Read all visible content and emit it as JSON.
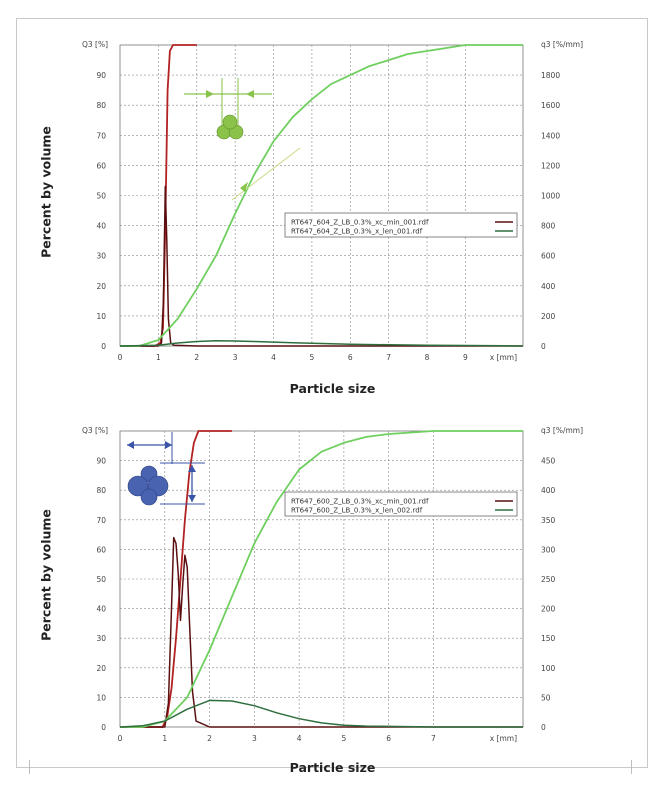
{
  "chart_data": [
    {
      "type": "line",
      "ylabel": "Percent by volume",
      "xlabel": "Particle size",
      "left_axis_label": "Q3 [%]",
      "right_axis_label": "q3 [%/mm]",
      "x_axis_unit_label": "x [mm]",
      "xlim": [
        0,
        10.5
      ],
      "ylim": [
        0,
        100
      ],
      "y2lim": [
        0,
        2000
      ],
      "x_ticks": [
        0,
        1,
        2,
        3,
        4,
        5,
        6,
        7,
        8,
        9
      ],
      "y_ticks": [
        0,
        10,
        20,
        30,
        40,
        50,
        60,
        70,
        80,
        90
      ],
      "y2_ticks": [
        0,
        200,
        400,
        600,
        800,
        1000,
        1200,
        1400,
        1600,
        1800
      ],
      "grid": true,
      "legend_position": "center-right",
      "legend": [
        "RT647_604_Z_LB_0.3%_xc_min_001.rdf",
        "RT647_604_Z_LB_0.3%_x_len_001.rdf"
      ],
      "series": [
        {
          "name": "RT647_604_Z_LB_0.3%_xc_min_001.rdf",
          "color": "#b22222",
          "axis": "left",
          "role": "cumulative",
          "x": [
            0,
            0.9,
            1.05,
            1.12,
            1.18,
            1.24,
            1.3,
            1.38,
            1.5,
            2.0
          ],
          "y": [
            0,
            0,
            1,
            6,
            40,
            85,
            98,
            100,
            100,
            100
          ]
        },
        {
          "name": "RT647_604_Z_LB_0.3%_xc_min_001.rdf",
          "color": "#5a1010",
          "axis": "right",
          "role": "density",
          "x": [
            0,
            1.0,
            1.08,
            1.13,
            1.18,
            1.22,
            1.26,
            1.32,
            1.4,
            2.0,
            10.5
          ],
          "y": [
            0,
            0,
            20,
            300,
            1060,
            700,
            180,
            20,
            5,
            0,
            0
          ]
        },
        {
          "name": "RT647_604_Z_LB_0.3%_x_len_001.rdf",
          "color": "#6fcf5f",
          "axis": "left",
          "role": "cumulative",
          "x": [
            0,
            0.5,
            1.0,
            1.5,
            2.0,
            2.5,
            3.0,
            3.5,
            4.0,
            4.5,
            5.0,
            5.5,
            6.0,
            6.5,
            7.0,
            7.5,
            8.0,
            8.5,
            9.0,
            9.5,
            10.0,
            10.5
          ],
          "y": [
            0,
            0,
            2,
            9,
            19,
            30,
            44,
            57,
            68,
            76,
            82,
            87,
            90,
            93,
            95,
            97,
            98,
            99,
            100,
            100,
            100,
            100
          ]
        },
        {
          "name": "RT647_604_Z_LB_0.3%_x_len_001.rdf",
          "color": "#2e6e3e",
          "axis": "right",
          "role": "density",
          "x": [
            0,
            1.0,
            1.5,
            2.0,
            2.5,
            3.0,
            3.5,
            4.0,
            4.5,
            5.0,
            6.0,
            7.0,
            8.0,
            9.0,
            10.0,
            10.5
          ],
          "y": [
            0,
            5,
            20,
            30,
            35,
            33,
            30,
            26,
            22,
            18,
            12,
            8,
            5,
            3,
            1,
            0
          ]
        }
      ]
    },
    {
      "type": "line",
      "ylabel": "Percent by volume",
      "xlabel": "Particle size",
      "left_axis_label": "Q3 [%]",
      "right_axis_label": "q3 [%/mm]",
      "x_axis_unit_label": "x [mm]",
      "xlim": [
        0,
        9
      ],
      "ylim": [
        0,
        100
      ],
      "y2lim": [
        0,
        500
      ],
      "x_ticks": [
        0,
        1,
        2,
        3,
        4,
        5,
        6,
        7
      ],
      "y_ticks": [
        0,
        10,
        20,
        30,
        40,
        50,
        60,
        70,
        80,
        90
      ],
      "y2_ticks": [
        0,
        50,
        100,
        150,
        200,
        250,
        300,
        350,
        400,
        450
      ],
      "grid": true,
      "legend_position": "top-right",
      "legend": [
        "RT647_600_Z_LB_0.3%_xc_min_001.rdf",
        "RT647_600_Z_LB_0.3%_x_len_002.rdf"
      ],
      "series": [
        {
          "name": "RT647_600_Z_LB_0.3%_xc_min_001.rdf",
          "color": "#b22222",
          "axis": "left",
          "role": "cumulative",
          "x": [
            0,
            0.95,
            1.05,
            1.15,
            1.25,
            1.35,
            1.45,
            1.55,
            1.65,
            1.75,
            2.0,
            2.5
          ],
          "y": [
            0,
            0,
            3,
            13,
            30,
            50,
            70,
            86,
            96,
            100,
            100,
            100
          ]
        },
        {
          "name": "RT647_600_Z_LB_0.3%_xc_min_001.rdf",
          "color": "#5a1010",
          "axis": "right",
          "role": "density",
          "x": [
            0,
            1.0,
            1.08,
            1.15,
            1.2,
            1.25,
            1.3,
            1.35,
            1.4,
            1.45,
            1.5,
            1.55,
            1.62,
            1.7,
            2.0,
            9.0
          ],
          "y": [
            0,
            0,
            40,
            200,
            320,
            310,
            260,
            180,
            240,
            290,
            270,
            180,
            60,
            10,
            0,
            0
          ]
        },
        {
          "name": "RT647_600_Z_LB_0.3%_x_len_002.rdf",
          "color": "#6fcf5f",
          "axis": "left",
          "role": "cumulative",
          "x": [
            0,
            0.5,
            1.0,
            1.5,
            2.0,
            2.5,
            3.0,
            3.5,
            4.0,
            4.5,
            5.0,
            5.5,
            6.0,
            6.5,
            7.0,
            7.5,
            8.0,
            8.5,
            9.0
          ],
          "y": [
            0,
            0,
            2,
            10,
            26,
            44,
            62,
            76,
            87,
            93,
            96,
            98,
            99,
            99.5,
            100,
            100,
            100,
            100,
            100
          ]
        },
        {
          "name": "RT647_600_Z_LB_0.3%_x_len_002.rdf",
          "color": "#2e6e3e",
          "axis": "right",
          "role": "density",
          "x": [
            0,
            0.5,
            1.0,
            1.5,
            2.0,
            2.5,
            3.0,
            3.5,
            4.0,
            4.5,
            5.0,
            5.5,
            6.0,
            7.0,
            8.0,
            9.0
          ],
          "y": [
            0,
            2,
            10,
            30,
            45,
            44,
            36,
            24,
            14,
            7,
            3,
            1.5,
            1,
            0,
            0,
            0
          ]
        }
      ]
    }
  ],
  "icons": [
    "particle-cluster-length-icon",
    "particle-cluster-width-icon"
  ]
}
